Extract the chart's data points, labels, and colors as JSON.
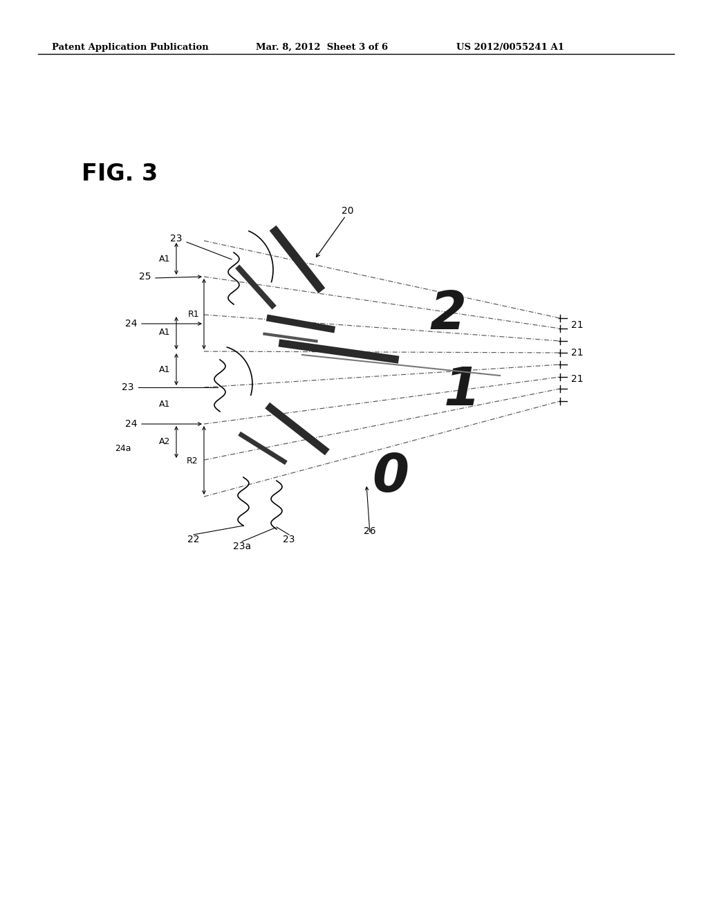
{
  "bg_color": "#ffffff",
  "header_left": "Patent Application Publication",
  "header_mid": "Mar. 8, 2012  Sheet 3 of 6",
  "header_right": "US 2012/0055241 A1",
  "fig_label": "FIG. 3"
}
